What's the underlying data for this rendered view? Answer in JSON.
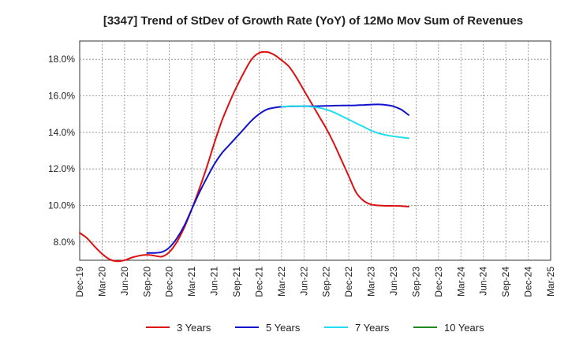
{
  "chart_data": {
    "type": "line",
    "title": "[3347]  Trend of StDev of Growth Rate (YoY) of 12Mo Mov Sum of Revenues",
    "xlabel": "",
    "ylabel": "",
    "x_ticks": [
      "Dec-19",
      "Mar-20",
      "Jun-20",
      "Sep-20",
      "Dec-20",
      "Mar-21",
      "Jun-21",
      "Sep-21",
      "Dec-21",
      "Mar-22",
      "Jun-22",
      "Sep-22",
      "Dec-22",
      "Mar-23",
      "Jun-23",
      "Sep-23",
      "Dec-23",
      "Mar-24",
      "Jun-24",
      "Sep-24",
      "Dec-24",
      "Mar-25"
    ],
    "y_ticks": [
      "8.0%",
      "10.0%",
      "12.0%",
      "14.0%",
      "16.0%",
      "18.0%"
    ],
    "y_tick_values": [
      8,
      10,
      12,
      14,
      16,
      18
    ],
    "ylim": [
      7.0,
      19.0
    ],
    "grid": true,
    "legend_position": "bottom",
    "series": [
      {
        "name": "3 Years",
        "color": "#dd1111",
        "points": [
          [
            0,
            8.5
          ],
          [
            1,
            8.2
          ],
          [
            2,
            7.75
          ],
          [
            3,
            7.35
          ],
          [
            4,
            7.05
          ],
          [
            5,
            6.95
          ],
          [
            6,
            7.0
          ],
          [
            7,
            7.15
          ],
          [
            8,
            7.25
          ],
          [
            9,
            7.3
          ],
          [
            10,
            7.25
          ],
          [
            11,
            7.2
          ],
          [
            12,
            7.45
          ],
          [
            13,
            8.0
          ],
          [
            14,
            8.8
          ],
          [
            15,
            9.8
          ],
          [
            16,
            10.9
          ],
          [
            17,
            12.1
          ],
          [
            18,
            13.4
          ],
          [
            19,
            14.6
          ],
          [
            20,
            15.6
          ],
          [
            21,
            16.5
          ],
          [
            22,
            17.3
          ],
          [
            23,
            18.0
          ],
          [
            24,
            18.35
          ],
          [
            25,
            18.4
          ],
          [
            26,
            18.25
          ],
          [
            27,
            17.95
          ],
          [
            28,
            17.6
          ],
          [
            29,
            17.0
          ],
          [
            30,
            16.3
          ],
          [
            31,
            15.6
          ],
          [
            32,
            14.9
          ],
          [
            33,
            14.2
          ],
          [
            34,
            13.4
          ],
          [
            35,
            12.5
          ],
          [
            36,
            11.6
          ],
          [
            37,
            10.7
          ],
          [
            38,
            10.25
          ],
          [
            39,
            10.05
          ],
          [
            40,
            10.0
          ],
          [
            41,
            9.98
          ],
          [
            42,
            9.98
          ],
          [
            43,
            9.97
          ],
          [
            44,
            9.93
          ]
        ]
      },
      {
        "name": "5 Years",
        "color": "#1111cc",
        "points": [
          [
            9,
            7.4
          ],
          [
            10,
            7.4
          ],
          [
            11,
            7.45
          ],
          [
            12,
            7.7
          ],
          [
            13,
            8.2
          ],
          [
            14,
            8.9
          ],
          [
            15,
            9.8
          ],
          [
            16,
            10.7
          ],
          [
            17,
            11.5
          ],
          [
            18,
            12.25
          ],
          [
            19,
            12.85
          ],
          [
            20,
            13.3
          ],
          [
            21,
            13.75
          ],
          [
            22,
            14.2
          ],
          [
            23,
            14.65
          ],
          [
            24,
            15.0
          ],
          [
            25,
            15.25
          ],
          [
            26,
            15.35
          ],
          [
            27,
            15.4
          ],
          [
            28,
            15.42
          ],
          [
            29,
            15.43
          ],
          [
            30,
            15.43
          ],
          [
            31,
            15.43
          ],
          [
            32,
            15.44
          ],
          [
            33,
            15.45
          ],
          [
            34,
            15.46
          ],
          [
            35,
            15.47
          ],
          [
            36,
            15.47
          ],
          [
            37,
            15.48
          ],
          [
            38,
            15.5
          ],
          [
            39,
            15.52
          ],
          [
            40,
            15.53
          ],
          [
            41,
            15.5
          ],
          [
            42,
            15.42
          ],
          [
            43,
            15.25
          ],
          [
            44,
            14.95
          ]
        ]
      },
      {
        "name": "7 Years",
        "color": "#22ddee",
        "points": [
          [
            27,
            15.4
          ],
          [
            28,
            15.43
          ],
          [
            29,
            15.44
          ],
          [
            30,
            15.43
          ],
          [
            31,
            15.4
          ],
          [
            32,
            15.35
          ],
          [
            33,
            15.25
          ],
          [
            34,
            15.1
          ],
          [
            35,
            14.9
          ],
          [
            36,
            14.7
          ],
          [
            37,
            14.5
          ],
          [
            38,
            14.3
          ],
          [
            39,
            14.1
          ],
          [
            40,
            13.95
          ],
          [
            41,
            13.85
          ],
          [
            42,
            13.78
          ],
          [
            43,
            13.73
          ],
          [
            44,
            13.68
          ]
        ]
      },
      {
        "name": "10 Years",
        "color": "#228822",
        "points": []
      }
    ]
  }
}
